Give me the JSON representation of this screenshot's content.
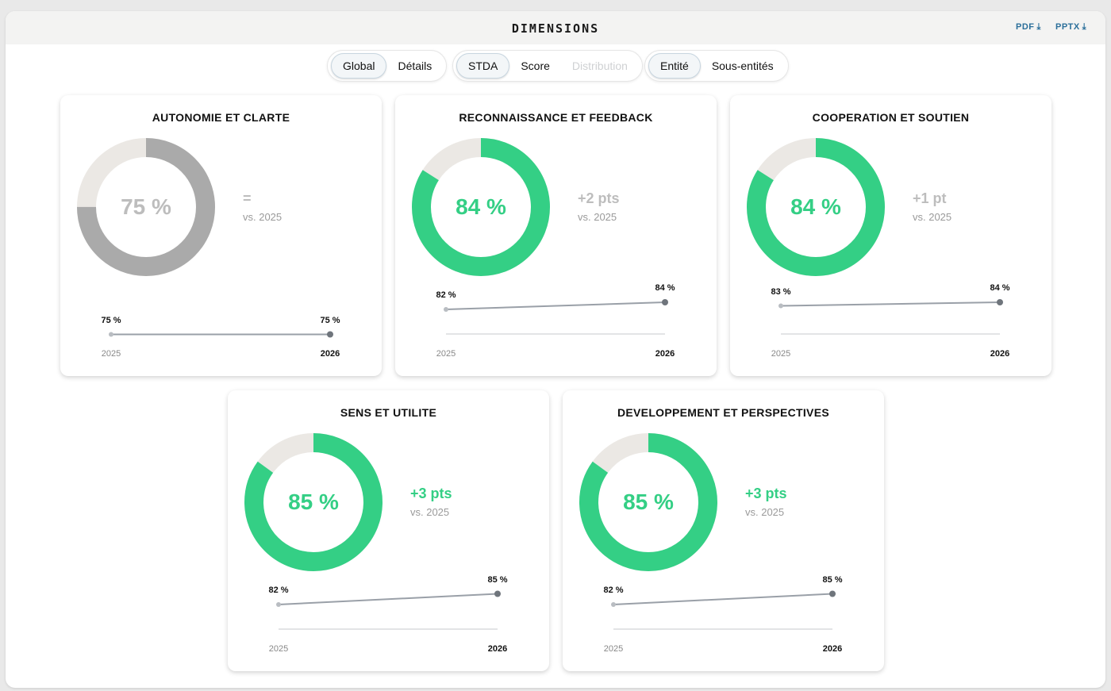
{
  "header": {
    "title": "DIMENSIONS",
    "exports": [
      {
        "label": "PDF",
        "icon": "download-icon"
      },
      {
        "label": "PPTX",
        "icon": "download-icon"
      }
    ]
  },
  "toggles": {
    "view": {
      "options": [
        "Global",
        "Détails"
      ],
      "selected": "Global"
    },
    "metric": {
      "options": [
        "STDA",
        "Score",
        "Distribution"
      ],
      "selected": "STDA",
      "disabled": [
        "Distribution"
      ]
    },
    "scope": {
      "options": [
        "Entité",
        "Sous-entités"
      ],
      "selected": "Entité"
    }
  },
  "colors": {
    "positive": "#34cf85",
    "neutral": "#aaaaaa",
    "neutral_text": "#bdbdbd",
    "track": "#ebe8e4",
    "trend_line": "#9aa0a8"
  },
  "cards": [
    {
      "title": "AUTONOMIE ET CLARTE",
      "value": 75,
      "value_label": "75 %",
      "delta": "=",
      "vs": "vs. 2025",
      "status": "neutral",
      "trend": {
        "start_year": "2025",
        "end_year": "2026",
        "start_value": 75,
        "end_value": 75,
        "start_label": "75 %",
        "end_label": "75 %"
      }
    },
    {
      "title": "RECONNAISSANCE ET FEEDBACK",
      "value": 84,
      "value_label": "84 %",
      "delta": "+2 pts",
      "vs": "vs. 2025",
      "status": "positive",
      "delta_status": "neutral",
      "trend": {
        "start_year": "2025",
        "end_year": "2026",
        "start_value": 82,
        "end_value": 84,
        "start_label": "82 %",
        "end_label": "84 %"
      }
    },
    {
      "title": "COOPERATION ET SOUTIEN",
      "value": 84,
      "value_label": "84 %",
      "delta": "+1 pt",
      "vs": "vs. 2025",
      "status": "positive",
      "delta_status": "neutral",
      "trend": {
        "start_year": "2025",
        "end_year": "2026",
        "start_value": 83,
        "end_value": 84,
        "start_label": "83 %",
        "end_label": "84 %"
      }
    },
    {
      "title": "SENS ET UTILITE",
      "value": 85,
      "value_label": "85 %",
      "delta": "+3 pts",
      "vs": "vs. 2025",
      "status": "positive",
      "delta_status": "positive",
      "trend": {
        "start_year": "2025",
        "end_year": "2026",
        "start_value": 82,
        "end_value": 85,
        "start_label": "82 %",
        "end_label": "85 %"
      }
    },
    {
      "title": "DEVELOPPEMENT ET PERSPECTIVES",
      "value": 85,
      "value_label": "85 %",
      "delta": "+3 pts",
      "vs": "vs. 2025",
      "status": "positive",
      "delta_status": "positive",
      "trend": {
        "start_year": "2025",
        "end_year": "2026",
        "start_value": 82,
        "end_value": 85,
        "start_label": "82 %",
        "end_label": "85 %"
      }
    }
  ]
}
